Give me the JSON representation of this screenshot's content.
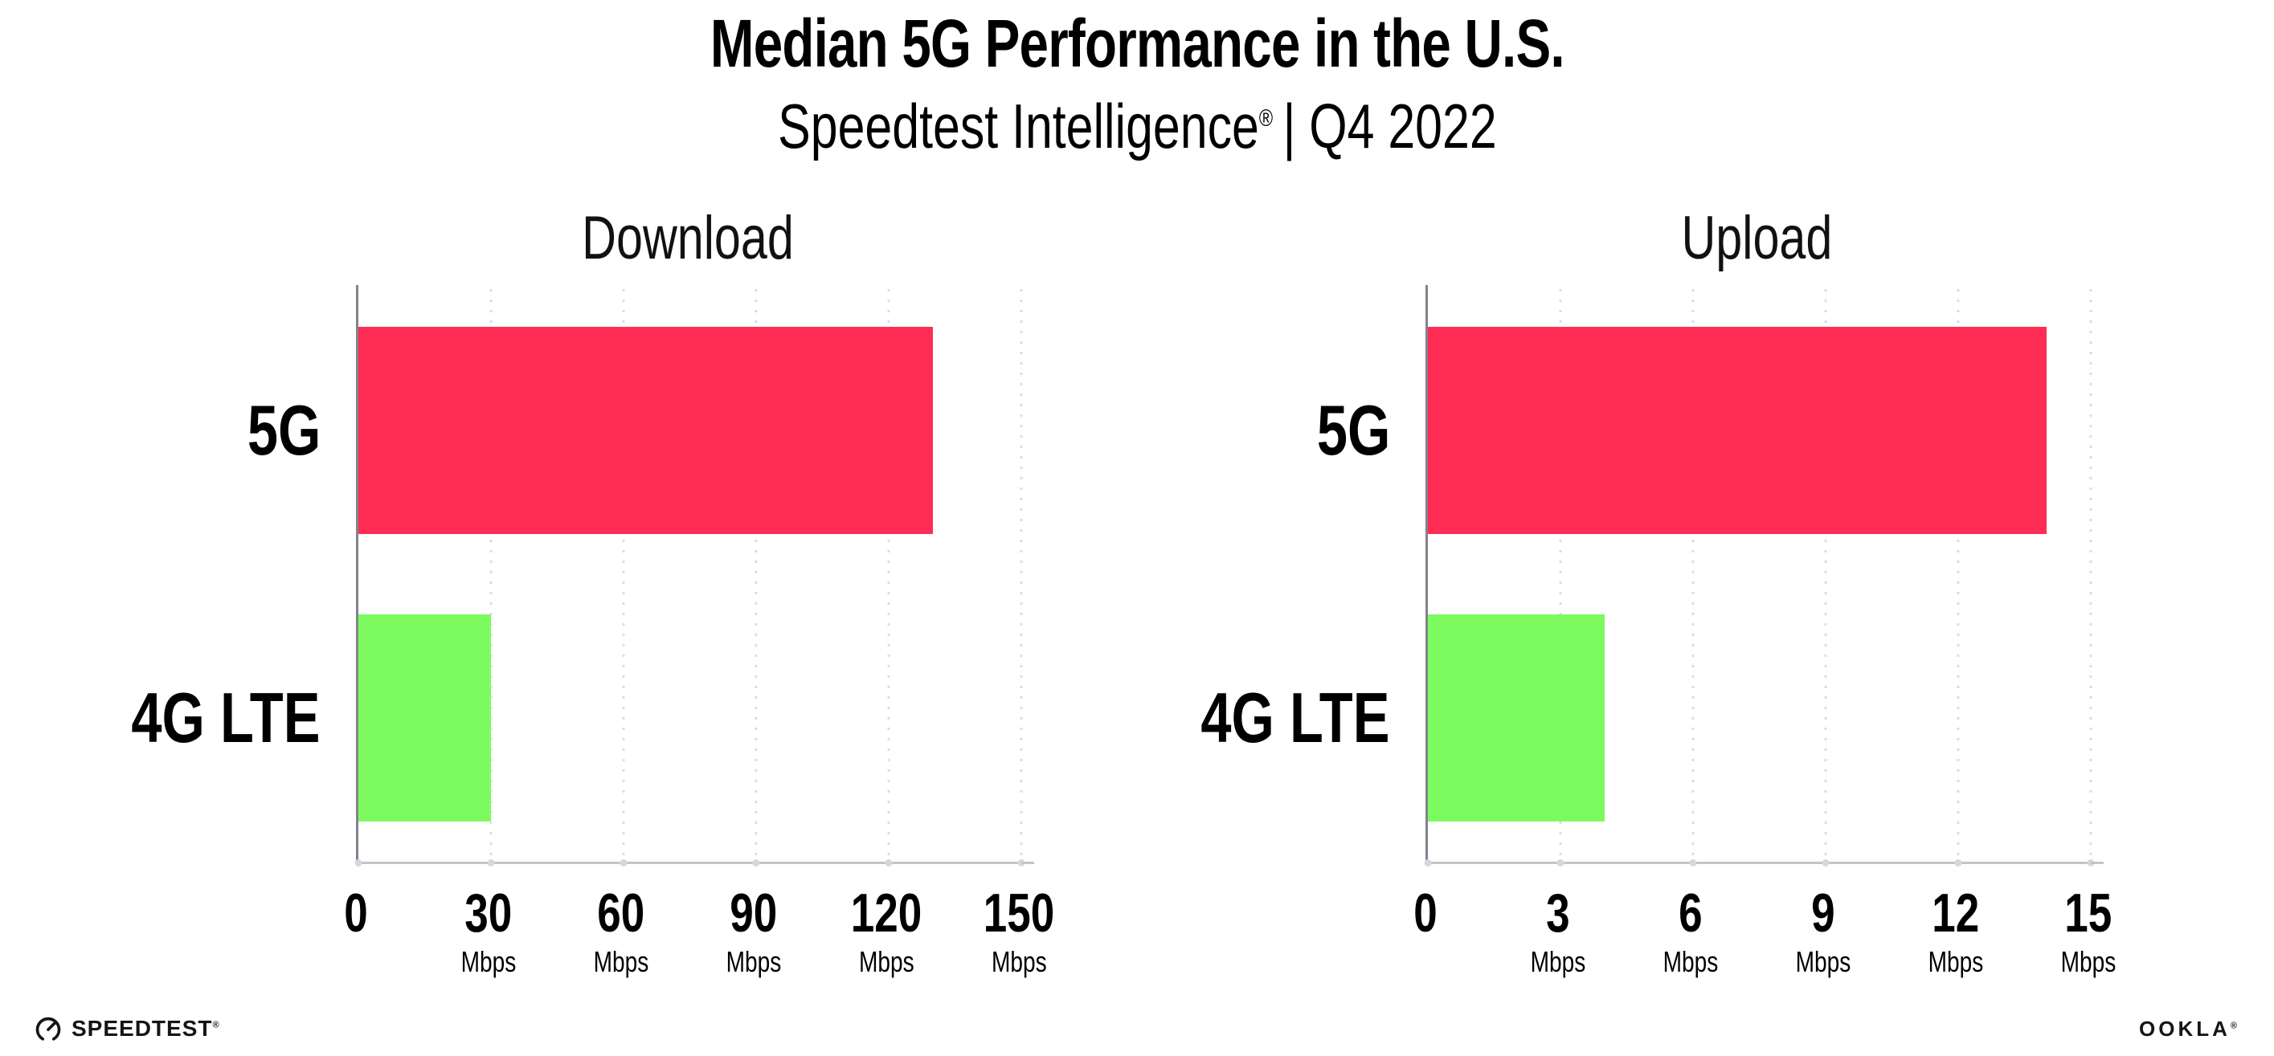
{
  "header": {
    "title": "Median 5G Performance in the U.S.",
    "subtitle_brand": "Speedtest Intelligence",
    "subtitle_reg": "®",
    "subtitle_rest": "| Q4 2022"
  },
  "footer": {
    "speedtest_label": "SPEEDTEST",
    "speedtest_reg": "®",
    "ookla_label": "OOKLA",
    "ookla_reg": "®"
  },
  "colors": {
    "bar_5g": "#FF2D55",
    "bar_4g_lte": "#7DFA5F",
    "gridline": "#DCDCE8",
    "axis_left": "#82828C",
    "axis_bottom": "#C4C4C4",
    "text": "#000000"
  },
  "chart_data": [
    {
      "type": "bar",
      "orientation": "horizontal",
      "title": "Download",
      "categories": [
        "5G",
        "4G LTE"
      ],
      "values": [
        130,
        30
      ],
      "unit": "Mbps",
      "xlim": [
        0,
        150
      ],
      "xticks": [
        0,
        30,
        60,
        90,
        120,
        150
      ],
      "grid": "dotted-vertical",
      "legend": "none",
      "bar_colors": [
        "#FF2D55",
        "#7DFA5F"
      ]
    },
    {
      "type": "bar",
      "orientation": "horizontal",
      "title": "Upload",
      "categories": [
        "5G",
        "4G LTE"
      ],
      "values": [
        14,
        4
      ],
      "unit": "Mbps",
      "xlim": [
        0,
        15
      ],
      "xticks": [
        0,
        3,
        6,
        9,
        12,
        15
      ],
      "grid": "dotted-vertical",
      "legend": "none",
      "bar_colors": [
        "#FF2D55",
        "#7DFA5F"
      ]
    }
  ]
}
